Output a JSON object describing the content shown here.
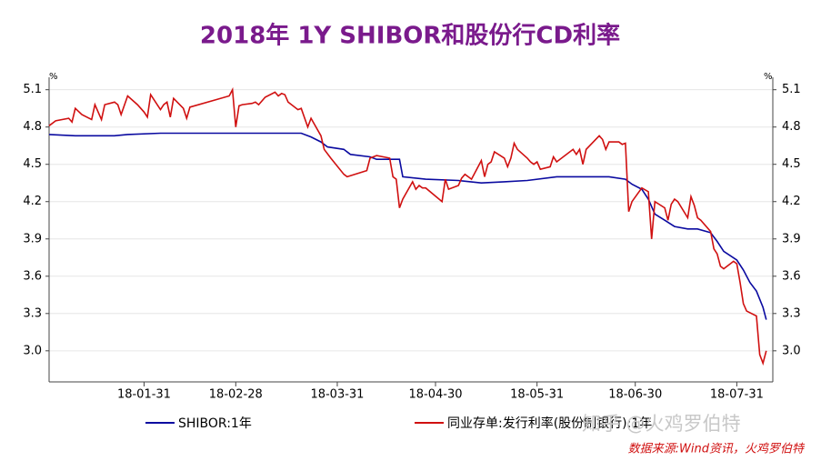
{
  "chart_data": {
    "type": "line",
    "title": "2018年 1Y SHIBOR和股份行CD利率",
    "y_unit": "%",
    "ylim": [
      2.75,
      5.2
    ],
    "yticks": [
      {
        "value": 3,
        "label": "3.0"
      },
      3.3,
      3.6,
      3.9,
      4.2,
      4.5,
      4.8,
      5.1
    ],
    "xlim": [
      "18-01-02",
      "18-08-11"
    ],
    "xticks": [
      "18-01-31",
      "18-02-28",
      "18-03-31",
      "18-04-30",
      "18-05-31",
      "18-06-30",
      "18-07-31"
    ],
    "grid": true,
    "legend": "bottom",
    "series": [
      {
        "name": "SHIBOR:1年",
        "color": "#0a0aa0",
        "x": [
          "18-01-02",
          "18-01-10",
          "18-01-22",
          "18-01-26",
          "18-02-05",
          "18-03-20",
          "18-03-23",
          "18-03-26",
          "18-03-28",
          "18-04-02",
          "18-04-04",
          "18-04-10",
          "18-04-12",
          "18-04-19",
          "18-04-20",
          "18-04-27",
          "18-05-07",
          "18-05-14",
          "18-05-21",
          "18-05-28",
          "18-06-06",
          "18-06-22",
          "18-06-27",
          "18-06-29",
          "18-07-02",
          "18-07-04",
          "18-07-06",
          "18-07-09",
          "18-07-12",
          "18-07-16",
          "18-07-19",
          "18-07-23",
          "18-07-25",
          "18-07-27",
          "18-07-31",
          "18-08-02",
          "18-08-04",
          "18-08-06",
          "18-08-08",
          "18-08-09"
        ],
        "values": [
          4.74,
          4.73,
          4.73,
          4.74,
          4.75,
          4.75,
          4.72,
          4.68,
          4.64,
          4.62,
          4.58,
          4.56,
          4.54,
          4.54,
          4.4,
          4.38,
          4.37,
          4.35,
          4.36,
          4.37,
          4.4,
          4.4,
          4.38,
          4.34,
          4.3,
          4.22,
          4.1,
          4.05,
          4.0,
          3.98,
          3.98,
          3.95,
          3.88,
          3.8,
          3.73,
          3.65,
          3.55,
          3.48,
          3.35,
          3.25
        ]
      },
      {
        "name": "同业存单:发行利率(股份制银行):1年",
        "color": "#d01010",
        "x": [
          "18-01-02",
          "18-01-04",
          "18-01-08",
          "18-01-09",
          "18-01-10",
          "18-01-12",
          "18-01-15",
          "18-01-16",
          "18-01-18",
          "18-01-19",
          "18-01-22",
          "18-01-23",
          "18-01-24",
          "18-01-26",
          "18-01-29",
          "18-01-31",
          "18-02-01",
          "18-02-02",
          "18-02-05",
          "18-02-06",
          "18-02-07",
          "18-02-08",
          "18-02-09",
          "18-02-12",
          "18-02-13",
          "18-02-14",
          "18-02-22",
          "18-02-26",
          "18-02-27",
          "18-02-28",
          "18-03-01",
          "18-03-02",
          "18-03-05",
          "18-03-06",
          "18-03-07",
          "18-03-09",
          "18-03-12",
          "18-03-13",
          "18-03-14",
          "18-03-15",
          "18-03-16",
          "18-03-19",
          "18-03-20",
          "18-03-22",
          "18-03-23",
          "18-03-26",
          "18-03-27",
          "18-03-29",
          "18-04-02",
          "18-04-03",
          "18-04-09",
          "18-04-10",
          "18-04-11",
          "18-04-12",
          "18-04-16",
          "18-04-17",
          "18-04-18",
          "18-04-19",
          "18-04-20",
          "18-04-23",
          "18-04-24",
          "18-04-25",
          "18-04-26",
          "18-04-27",
          "18-05-02",
          "18-05-03",
          "18-05-04",
          "18-05-07",
          "18-05-08",
          "18-05-09",
          "18-05-10",
          "18-05-11",
          "18-05-14",
          "18-05-15",
          "18-05-16",
          "18-05-17",
          "18-05-18",
          "18-05-21",
          "18-05-22",
          "18-05-23",
          "18-05-24",
          "18-05-25",
          "18-05-28",
          "18-05-29",
          "18-05-30",
          "18-05-31",
          "18-06-01",
          "18-06-04",
          "18-06-05",
          "18-06-06",
          "18-06-11",
          "18-06-12",
          "18-06-13",
          "18-06-14",
          "18-06-15",
          "18-06-19",
          "18-06-20",
          "18-06-21",
          "18-06-22",
          "18-06-25",
          "18-06-26",
          "18-06-27",
          "18-06-28",
          "18-06-29",
          "18-07-02",
          "18-07-04",
          "18-07-05",
          "18-07-06",
          "18-07-09",
          "18-07-10",
          "18-07-11",
          "18-07-12",
          "18-07-13",
          "18-07-16",
          "18-07-17",
          "18-07-18",
          "18-07-19",
          "18-07-20",
          "18-07-23",
          "18-07-24",
          "18-07-25",
          "18-07-26",
          "18-07-27",
          "18-07-30",
          "18-07-31",
          "18-08-01",
          "18-08-02",
          "18-08-03",
          "18-08-06",
          "18-08-07",
          "18-08-08",
          "18-08-09"
        ],
        "values": [
          4.81,
          4.85,
          4.87,
          4.84,
          4.95,
          4.9,
          4.86,
          4.98,
          4.86,
          4.98,
          5.0,
          4.98,
          4.9,
          5.05,
          4.98,
          4.92,
          4.88,
          5.06,
          4.94,
          4.98,
          5.0,
          4.88,
          5.03,
          4.95,
          4.87,
          4.96,
          5.02,
          5.05,
          5.1,
          4.8,
          4.97,
          4.98,
          4.99,
          5.0,
          4.98,
          5.04,
          5.08,
          5.05,
          5.07,
          5.06,
          5.0,
          4.94,
          4.95,
          4.8,
          4.87,
          4.73,
          4.62,
          4.55,
          4.42,
          4.4,
          4.45,
          4.55,
          4.56,
          4.57,
          4.55,
          4.4,
          4.38,
          4.15,
          4.22,
          4.36,
          4.3,
          4.33,
          4.31,
          4.31,
          4.2,
          4.38,
          4.3,
          4.33,
          4.39,
          4.42,
          4.4,
          4.38,
          4.53,
          4.4,
          4.5,
          4.52,
          4.6,
          4.55,
          4.48,
          4.55,
          4.67,
          4.62,
          4.55,
          4.52,
          4.5,
          4.52,
          4.46,
          4.48,
          4.56,
          4.52,
          4.62,
          4.58,
          4.62,
          4.5,
          4.62,
          4.73,
          4.7,
          4.62,
          4.68,
          4.68,
          4.66,
          4.67,
          4.12,
          4.2,
          4.31,
          4.28,
          3.9,
          4.2,
          4.15,
          4.05,
          4.18,
          4.22,
          4.2,
          4.07,
          4.24,
          4.17,
          4.07,
          4.05,
          3.96,
          3.82,
          3.78,
          3.68,
          3.66,
          3.72,
          3.7,
          3.55,
          3.38,
          3.32,
          3.28,
          2.97,
          2.9,
          3.0
        ]
      }
    ],
    "watermark": "知乎 @火鸡罗伯特",
    "source": "数据来源:Wind资讯，火鸡罗伯特"
  }
}
